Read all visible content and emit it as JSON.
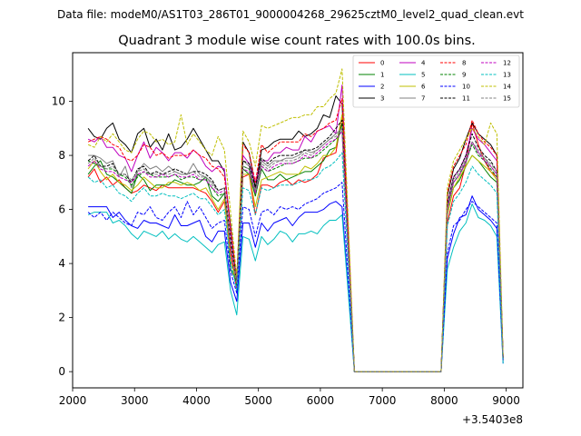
{
  "chart_data": {
    "type": "line",
    "suptitle": "Data file: modeM0/AS1T03_286T01_9000004268_29625cztM0_level2_quad_clean.evt",
    "title": "Quadrant 3 module wise count rates with 100.0s bins.",
    "xlabel": "",
    "ylabel": "",
    "offset_label": "+3.5403e8",
    "xlim": [
      2000,
      9270
    ],
    "ylim": [
      -0.6,
      11.8
    ],
    "xticks": [
      2000,
      3000,
      4000,
      5000,
      6000,
      7000,
      8000,
      9000
    ],
    "yticks": [
      0,
      2,
      4,
      6,
      8,
      10
    ],
    "legend_position": "top-right",
    "x": [
      2250,
      2350,
      2450,
      2550,
      2650,
      2750,
      2850,
      2950,
      3050,
      3150,
      3250,
      3350,
      3450,
      3550,
      3650,
      3750,
      3850,
      3950,
      4050,
      4150,
      4250,
      4350,
      4450,
      4550,
      4650,
      4750,
      4850,
      4950,
      5050,
      5150,
      5250,
      5350,
      5450,
      5550,
      5650,
      5750,
      5850,
      5950,
      6050,
      6150,
      6250,
      6350,
      6550,
      6650,
      6750,
      6850,
      6950,
      7050,
      7150,
      7250,
      7350,
      7450,
      7550,
      7650,
      7750,
      7850,
      7950,
      8050,
      8150,
      8250,
      8350,
      8450,
      8550,
      8650,
      8750,
      8850,
      8950
    ],
    "series": [
      {
        "name": "0",
        "color": "#ff0000",
        "dash": false,
        "values": [
          7.2,
          7.5,
          7.0,
          7.2,
          6.9,
          7.1,
          6.8,
          6.6,
          6.7,
          6.9,
          6.8,
          6.7,
          6.9,
          6.8,
          6.8,
          6.8,
          6.8,
          6.8,
          6.7,
          6.6,
          6.3,
          5.9,
          6.3,
          4.4,
          3.0,
          7.2,
          7.3,
          5.8,
          6.9,
          6.9,
          6.8,
          7.0,
          7.1,
          6.9,
          7.1,
          7.0,
          7.1,
          7.3,
          7.9,
          8.0,
          8.1,
          9.5,
          0.0,
          0.0,
          0.0,
          0.0,
          0.0,
          0.0,
          0.0,
          0.0,
          0.0,
          0.0,
          0.0,
          0.0,
          0.0,
          0.0,
          0.0,
          5.5,
          6.5,
          6.8,
          7.7,
          9.2,
          8.4,
          7.8,
          7.4,
          7.2,
          0.4
        ]
      },
      {
        "name": "1",
        "color": "#008000",
        "dash": false,
        "values": [
          7.3,
          7.6,
          7.8,
          7.3,
          7.2,
          7.0,
          6.8,
          6.6,
          7.3,
          7.1,
          6.7,
          6.9,
          6.9,
          6.9,
          7.1,
          7.0,
          6.9,
          6.9,
          7.0,
          7.2,
          6.5,
          6.3,
          6.6,
          3.8,
          3.3,
          7.5,
          7.3,
          6.5,
          7.5,
          7.1,
          7.1,
          7.3,
          7.1,
          7.2,
          7.3,
          7.4,
          7.4,
          7.6,
          7.8,
          8.2,
          8.3,
          9.2,
          0.0,
          0.0,
          0.0,
          0.0,
          0.0,
          0.0,
          0.0,
          0.0,
          0.0,
          0.0,
          0.0,
          0.0,
          0.0,
          0.0,
          0.0,
          5.8,
          6.8,
          7.1,
          7.6,
          8.0,
          7.8,
          7.5,
          7.2,
          7.0,
          0.5
        ]
      },
      {
        "name": "2",
        "color": "#0000ff",
        "dash": false,
        "values": [
          6.1,
          6.1,
          6.1,
          6.1,
          5.7,
          5.9,
          5.6,
          5.4,
          5.3,
          5.6,
          5.5,
          5.5,
          5.4,
          5.3,
          5.8,
          5.4,
          5.4,
          5.5,
          5.6,
          5.0,
          4.8,
          5.2,
          5.2,
          3.3,
          2.6,
          5.5,
          5.5,
          4.6,
          5.5,
          5.2,
          5.5,
          5.6,
          5.7,
          5.4,
          5.7,
          5.9,
          5.9,
          5.9,
          6.0,
          6.2,
          6.3,
          6.1,
          0.0,
          0.0,
          0.0,
          0.0,
          0.0,
          0.0,
          0.0,
          0.0,
          0.0,
          0.0,
          0.0,
          0.0,
          0.0,
          0.0,
          0.0,
          4.2,
          5.1,
          5.7,
          5.8,
          6.5,
          6.0,
          5.8,
          5.6,
          5.3,
          0.3
        ]
      },
      {
        "name": "3",
        "color": "#000000",
        "dash": false,
        "values": [
          9.0,
          8.7,
          8.6,
          9.0,
          9.2,
          8.6,
          8.4,
          8.1,
          8.8,
          9.0,
          8.3,
          8.6,
          8.2,
          8.8,
          8.2,
          8.3,
          8.6,
          9.0,
          8.6,
          8.2,
          7.8,
          7.8,
          7.4,
          5.4,
          3.3,
          8.5,
          8.1,
          6.8,
          8.2,
          8.3,
          8.5,
          8.6,
          8.6,
          8.6,
          8.9,
          8.7,
          8.8,
          9.0,
          9.5,
          9.4,
          10.2,
          9.9,
          0.0,
          0.0,
          0.0,
          0.0,
          0.0,
          0.0,
          0.0,
          0.0,
          0.0,
          0.0,
          0.0,
          0.0,
          0.0,
          0.0,
          0.0,
          6.5,
          7.5,
          7.9,
          8.6,
          9.2,
          8.8,
          8.6,
          8.4,
          8.0,
          0.5
        ]
      },
      {
        "name": "4",
        "color": "#bf00bf",
        "dash": false,
        "values": [
          8.6,
          8.5,
          8.7,
          8.3,
          8.3,
          8.0,
          7.9,
          7.4,
          8.0,
          8.5,
          7.9,
          8.3,
          8.1,
          7.8,
          8.1,
          8.1,
          7.9,
          8.2,
          8.0,
          7.6,
          7.4,
          7.6,
          7.5,
          5.2,
          3.4,
          8.0,
          7.7,
          7.0,
          7.8,
          7.8,
          8.1,
          8.1,
          8.3,
          8.2,
          8.2,
          8.7,
          8.5,
          8.9,
          9.0,
          9.1,
          8.8,
          10.6,
          0.0,
          0.0,
          0.0,
          0.0,
          0.0,
          0.0,
          0.0,
          0.0,
          0.0,
          0.0,
          0.0,
          0.0,
          0.0,
          0.0,
          0.0,
          6.2,
          7.2,
          7.5,
          8.0,
          9.0,
          8.6,
          8.4,
          8.1,
          7.8,
          0.5
        ]
      },
      {
        "name": "5",
        "color": "#00bfbf",
        "dash": false,
        "values": [
          5.8,
          5.9,
          5.9,
          5.9,
          5.5,
          5.6,
          5.4,
          5.1,
          4.9,
          5.2,
          5.1,
          5.0,
          5.2,
          4.9,
          5.1,
          4.9,
          4.8,
          5.0,
          4.8,
          4.6,
          4.4,
          4.7,
          4.8,
          3.0,
          2.1,
          5.0,
          4.9,
          4.1,
          5.0,
          4.7,
          4.9,
          5.2,
          5.1,
          4.8,
          5.1,
          5.1,
          5.2,
          5.1,
          5.4,
          5.6,
          5.6,
          5.8,
          0.0,
          0.0,
          0.0,
          0.0,
          0.0,
          0.0,
          0.0,
          0.0,
          0.0,
          0.0,
          0.0,
          0.0,
          0.0,
          0.0,
          0.0,
          3.8,
          4.6,
          5.2,
          5.5,
          6.2,
          5.7,
          5.6,
          5.4,
          5.0,
          0.3
        ]
      },
      {
        "name": "6",
        "color": "#bfbf00",
        "dash": false,
        "values": [
          7.5,
          7.8,
          7.4,
          7.1,
          7.3,
          7.0,
          6.9,
          6.7,
          6.9,
          7.2,
          7.0,
          6.8,
          6.8,
          7.0,
          7.0,
          6.9,
          7.0,
          6.9,
          6.7,
          6.8,
          6.4,
          6.0,
          6.4,
          4.1,
          3.3,
          7.3,
          7.3,
          6.1,
          7.1,
          7.2,
          7.3,
          7.4,
          7.3,
          7.3,
          7.3,
          7.6,
          7.5,
          7.7,
          8.0,
          8.0,
          8.3,
          9.5,
          0.0,
          0.0,
          0.0,
          0.0,
          0.0,
          0.0,
          0.0,
          0.0,
          0.0,
          0.0,
          0.0,
          0.0,
          0.0,
          0.0,
          0.0,
          5.8,
          6.8,
          7.2,
          7.6,
          8.0,
          7.8,
          7.6,
          7.4,
          7.1,
          0.5
        ]
      },
      {
        "name": "7",
        "color": "#808080",
        "dash": false,
        "values": [
          8.0,
          8.0,
          7.9,
          7.7,
          7.8,
          7.2,
          7.6,
          6.8,
          7.4,
          7.7,
          7.5,
          7.6,
          7.4,
          7.6,
          7.4,
          7.3,
          7.3,
          7.7,
          7.3,
          7.2,
          7.0,
          6.7,
          6.8,
          4.7,
          3.2,
          7.8,
          7.6,
          6.7,
          7.8,
          7.6,
          7.8,
          7.8,
          7.9,
          7.9,
          8.0,
          8.2,
          8.1,
          8.2,
          8.4,
          8.6,
          8.8,
          9.0,
          0.0,
          0.0,
          0.0,
          0.0,
          0.0,
          0.0,
          0.0,
          0.0,
          0.0,
          0.0,
          0.0,
          0.0,
          0.0,
          0.0,
          0.0,
          6.0,
          7.0,
          7.3,
          7.7,
          8.5,
          8.1,
          7.9,
          7.6,
          7.3,
          0.5
        ]
      },
      {
        "name": "8",
        "color": "#ff0000",
        "dash": true,
        "values": [
          8.5,
          8.6,
          8.7,
          8.6,
          8.4,
          8.3,
          7.9,
          7.8,
          8.0,
          8.4,
          8.3,
          8.0,
          8.1,
          7.9,
          8.0,
          8.0,
          8.0,
          8.2,
          8.0,
          7.9,
          7.6,
          7.5,
          7.2,
          5.3,
          3.4,
          8.4,
          8.1,
          7.0,
          8.4,
          8.1,
          8.3,
          8.5,
          8.5,
          8.5,
          8.5,
          8.8,
          8.7,
          8.9,
          9.0,
          9.2,
          9.3,
          10.1,
          0.0,
          0.0,
          0.0,
          0.0,
          0.0,
          0.0,
          0.0,
          0.0,
          0.0,
          0.0,
          0.0,
          0.0,
          0.0,
          0.0,
          0.0,
          6.6,
          7.6,
          8.0,
          8.4,
          9.3,
          8.8,
          8.5,
          8.3,
          8.0,
          0.5
        ]
      },
      {
        "name": "9",
        "color": "#008000",
        "dash": true,
        "values": [
          7.8,
          7.7,
          7.6,
          7.5,
          7.5,
          7.3,
          7.2,
          6.9,
          7.2,
          7.4,
          7.3,
          7.2,
          7.2,
          7.2,
          7.3,
          7.1,
          7.2,
          7.2,
          7.1,
          7.1,
          6.8,
          6.5,
          6.6,
          4.7,
          3.2,
          7.6,
          7.5,
          6.5,
          7.6,
          7.4,
          7.5,
          7.6,
          7.7,
          7.7,
          7.8,
          7.9,
          7.9,
          8.0,
          8.2,
          8.4,
          8.6,
          8.9,
          0.0,
          0.0,
          0.0,
          0.0,
          0.0,
          0.0,
          0.0,
          0.0,
          0.0,
          0.0,
          0.0,
          0.0,
          0.0,
          0.0,
          0.0,
          6.0,
          7.0,
          7.3,
          7.8,
          8.4,
          8.0,
          7.8,
          7.5,
          7.2,
          0.5
        ]
      },
      {
        "name": "10",
        "color": "#0000ff",
        "dash": true,
        "values": [
          5.9,
          5.7,
          5.9,
          5.6,
          5.9,
          5.7,
          5.5,
          5.4,
          5.9,
          5.8,
          6.1,
          5.7,
          5.6,
          5.9,
          6.1,
          5.7,
          6.3,
          5.8,
          6.1,
          5.7,
          5.3,
          5.5,
          5.6,
          3.7,
          2.9,
          6.1,
          6.0,
          5.0,
          5.9,
          6.0,
          5.8,
          6.1,
          6.0,
          6.1,
          6.0,
          6.2,
          6.3,
          6.4,
          6.6,
          6.7,
          6.8,
          7.0,
          0.0,
          0.0,
          0.0,
          0.0,
          0.0,
          0.0,
          0.0,
          0.0,
          0.0,
          0.0,
          0.0,
          0.0,
          0.0,
          0.0,
          0.0,
          4.4,
          5.4,
          5.6,
          6.0,
          6.3,
          6.1,
          5.9,
          5.7,
          5.5,
          0.4
        ]
      },
      {
        "name": "11",
        "color": "#000000",
        "dash": true,
        "values": [
          7.8,
          8.0,
          7.6,
          7.6,
          7.7,
          7.3,
          7.3,
          7.0,
          7.5,
          7.6,
          7.3,
          7.4,
          7.3,
          7.4,
          7.5,
          7.4,
          7.3,
          7.4,
          7.4,
          7.3,
          7.1,
          6.7,
          6.8,
          4.9,
          3.3,
          7.8,
          7.7,
          6.8,
          7.9,
          7.7,
          7.9,
          8.0,
          8.0,
          8.0,
          8.1,
          8.2,
          8.2,
          8.3,
          8.5,
          8.7,
          9.0,
          9.3,
          0.0,
          0.0,
          0.0,
          0.0,
          0.0,
          0.0,
          0.0,
          0.0,
          0.0,
          0.0,
          0.0,
          0.0,
          0.0,
          0.0,
          0.0,
          6.2,
          7.2,
          7.5,
          8.0,
          8.8,
          8.3,
          8.0,
          7.8,
          7.4,
          0.5
        ]
      },
      {
        "name": "12",
        "color": "#bf00bf",
        "dash": true,
        "values": [
          7.6,
          7.8,
          7.5,
          7.4,
          7.4,
          7.2,
          7.1,
          7.0,
          7.3,
          7.4,
          7.2,
          7.2,
          7.3,
          7.2,
          7.3,
          7.2,
          7.2,
          7.3,
          7.1,
          7.1,
          6.8,
          6.6,
          6.7,
          4.6,
          3.3,
          7.5,
          7.4,
          6.6,
          7.6,
          7.4,
          7.6,
          7.7,
          7.7,
          7.7,
          7.8,
          8.0,
          7.9,
          8.1,
          8.3,
          8.5,
          8.6,
          8.9,
          0.0,
          0.0,
          0.0,
          0.0,
          0.0,
          0.0,
          0.0,
          0.0,
          0.0,
          0.0,
          0.0,
          0.0,
          0.0,
          0.0,
          0.0,
          6.0,
          7.0,
          7.3,
          7.8,
          8.5,
          8.1,
          7.8,
          7.6,
          7.3,
          0.5
        ]
      },
      {
        "name": "13",
        "color": "#00bfbf",
        "dash": true,
        "values": [
          7.2,
          7.0,
          7.1,
          6.8,
          6.9,
          6.6,
          6.5,
          6.3,
          6.6,
          6.8,
          6.5,
          6.5,
          6.6,
          6.5,
          6.5,
          6.4,
          6.5,
          6.6,
          6.4,
          6.4,
          6.1,
          5.8,
          6.0,
          4.1,
          3.0,
          6.8,
          6.7,
          5.8,
          6.8,
          6.7,
          6.8,
          6.9,
          6.9,
          6.9,
          7.0,
          7.1,
          7.1,
          7.2,
          7.5,
          7.6,
          7.8,
          8.1,
          0.0,
          0.0,
          0.0,
          0.0,
          0.0,
          0.0,
          0.0,
          0.0,
          0.0,
          0.0,
          0.0,
          0.0,
          0.0,
          0.0,
          0.0,
          5.4,
          6.3,
          6.6,
          7.0,
          7.6,
          7.3,
          7.1,
          6.9,
          6.6,
          0.4
        ]
      },
      {
        "name": "14",
        "color": "#bfbf00",
        "dash": true,
        "values": [
          8.4,
          8.3,
          8.7,
          8.5,
          8.8,
          8.5,
          8.2,
          8.1,
          8.6,
          8.9,
          8.8,
          8.5,
          8.6,
          8.4,
          8.5,
          9.5,
          8.4,
          8.8,
          8.5,
          8.2,
          8.0,
          8.7,
          8.2,
          5.9,
          3.5,
          8.9,
          8.5,
          7.6,
          9.1,
          9.0,
          9.1,
          9.2,
          9.3,
          9.4,
          9.4,
          9.5,
          9.5,
          9.8,
          9.8,
          10.1,
          10.3,
          11.2,
          0.0,
          0.0,
          0.0,
          0.0,
          0.0,
          0.0,
          0.0,
          0.0,
          0.0,
          0.0,
          0.0,
          0.0,
          0.0,
          0.0,
          0.0,
          6.8,
          7.8,
          8.2,
          8.6,
          9.0,
          8.7,
          8.4,
          9.2,
          8.8,
          0.6
        ]
      },
      {
        "name": "15",
        "color": "#808080",
        "dash": true,
        "values": [
          7.7,
          7.9,
          7.6,
          7.5,
          7.6,
          7.3,
          7.3,
          7.1,
          7.4,
          7.5,
          7.3,
          7.3,
          7.3,
          7.3,
          7.4,
          7.3,
          7.3,
          7.4,
          7.2,
          7.2,
          6.9,
          6.7,
          6.8,
          4.7,
          3.3,
          7.6,
          7.5,
          6.7,
          7.7,
          7.5,
          7.7,
          7.8,
          7.8,
          7.8,
          7.9,
          8.1,
          8.0,
          8.2,
          8.4,
          8.6,
          8.7,
          9.0,
          0.0,
          0.0,
          0.0,
          0.0,
          0.0,
          0.0,
          0.0,
          0.0,
          0.0,
          0.0,
          0.0,
          0.0,
          0.0,
          0.0,
          0.0,
          6.1,
          7.1,
          7.4,
          7.9,
          8.5,
          8.2,
          7.9,
          7.7,
          7.4,
          0.5
        ]
      }
    ]
  }
}
